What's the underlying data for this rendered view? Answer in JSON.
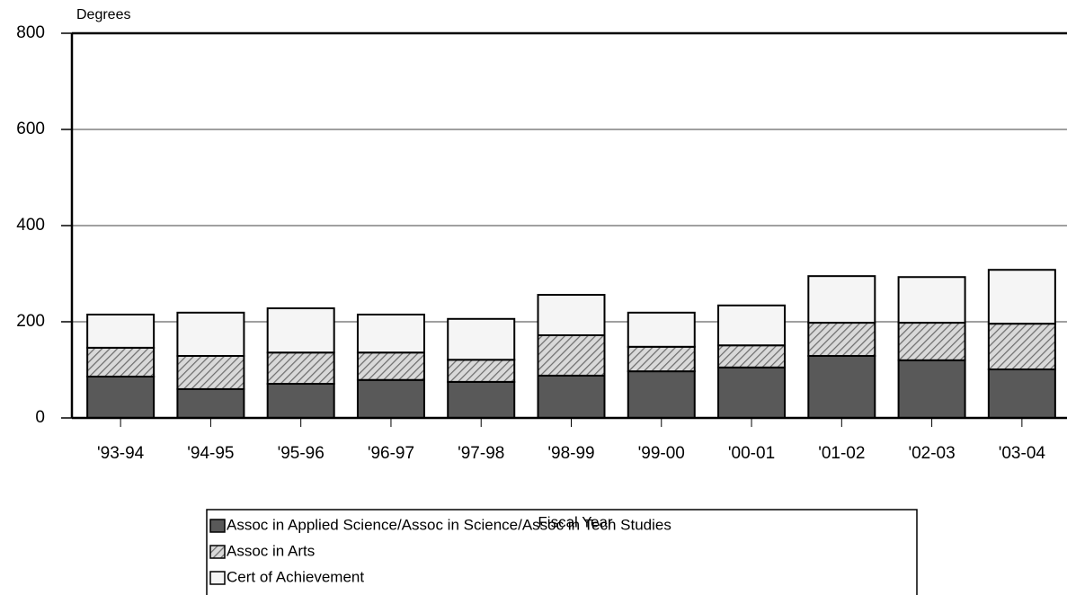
{
  "chart_data": {
    "type": "stacked_bar",
    "y_label": "Degrees",
    "x_label": "Fiscal Year",
    "categories": [
      "'93-94",
      "'94-95",
      "'95-96",
      "'96-97",
      "'97-98",
      "'98-99",
      "'99-00",
      "'00-01",
      "'01-02",
      "'02-03",
      "'03-04"
    ],
    "series": [
      {
        "name": "Assoc in Applied Science/Assoc in Science/Assoc in Tech Studies",
        "color": "#595959",
        "pattern": "solid",
        "values": [
          86,
          60,
          71,
          79,
          75,
          88,
          97,
          105,
          129,
          120,
          101
        ]
      },
      {
        "name": "Assoc in Arts",
        "color": "#8c8c8c",
        "pattern": "hatch",
        "values": [
          60,
          69,
          65,
          57,
          46,
          84,
          51,
          46,
          69,
          78,
          95
        ]
      },
      {
        "name": "Cert of Achievement",
        "color": "#f5f5f5",
        "pattern": "solid",
        "values": [
          69,
          90,
          92,
          79,
          85,
          84,
          71,
          83,
          97,
          95,
          112
        ]
      }
    ],
    "ylim": [
      0,
      800
    ],
    "yticks": [
      0,
      200,
      400,
      600,
      800
    ],
    "grid": true,
    "legend": "bottom"
  }
}
